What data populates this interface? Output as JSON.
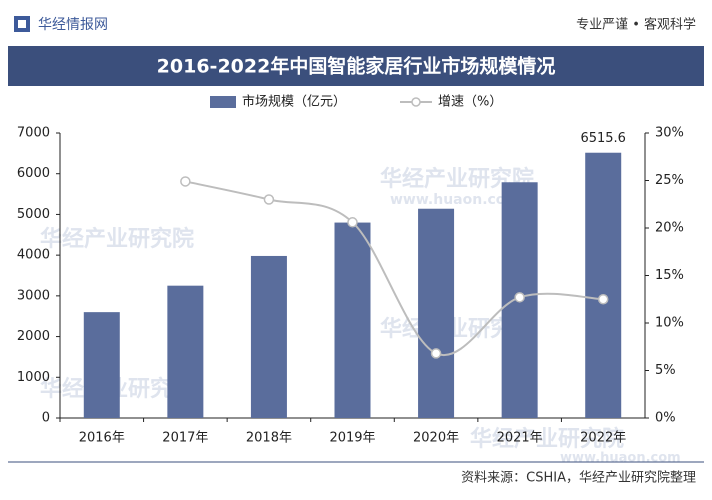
{
  "header": {
    "brand": "华经情报网",
    "slogan": "专业严谨 • 客观科学"
  },
  "chart_data": {
    "type": "bar_line",
    "title": "2016-2022年中国智能家居行业市场规模情况",
    "categories": [
      "2016年",
      "2017年",
      "2018年",
      "2019年",
      "2020年",
      "2021年",
      "2022年"
    ],
    "series": [
      {
        "name": "市场规模（亿元）",
        "type": "bar",
        "color": "#5a6d9c",
        "values": [
          2600,
          3250,
          3980,
          4800,
          5140,
          5790,
          6515.6
        ],
        "value_labels": [
          null,
          null,
          null,
          null,
          null,
          null,
          "6515.6"
        ]
      },
      {
        "name": "增速（%）",
        "type": "line",
        "axis": "y2",
        "color": "#bdbdbd",
        "values": [
          null,
          24.9,
          23,
          20.6,
          6.8,
          12.7,
          12.5
        ]
      }
    ],
    "ylim": [
      0,
      7000
    ],
    "yticks": [
      0,
      1000,
      2000,
      3000,
      4000,
      5000,
      6000,
      7000
    ],
    "y2lim": [
      0,
      30
    ],
    "y2ticks": [
      {
        "value": 0,
        "label": "0%"
      },
      {
        "value": 5,
        "label": "5%"
      },
      {
        "value": 10,
        "label": "10%"
      },
      {
        "value": 15,
        "label": "15%"
      },
      {
        "value": 20,
        "label": "20%"
      },
      {
        "value": 25,
        "label": "25%"
      },
      {
        "value": 30,
        "label": "30%"
      }
    ],
    "grid": false,
    "source": "资料来源：CSHIA，华经产业研究院整理",
    "watermark": "华经产业研究院",
    "watermark_url": "www.huaon.com"
  }
}
